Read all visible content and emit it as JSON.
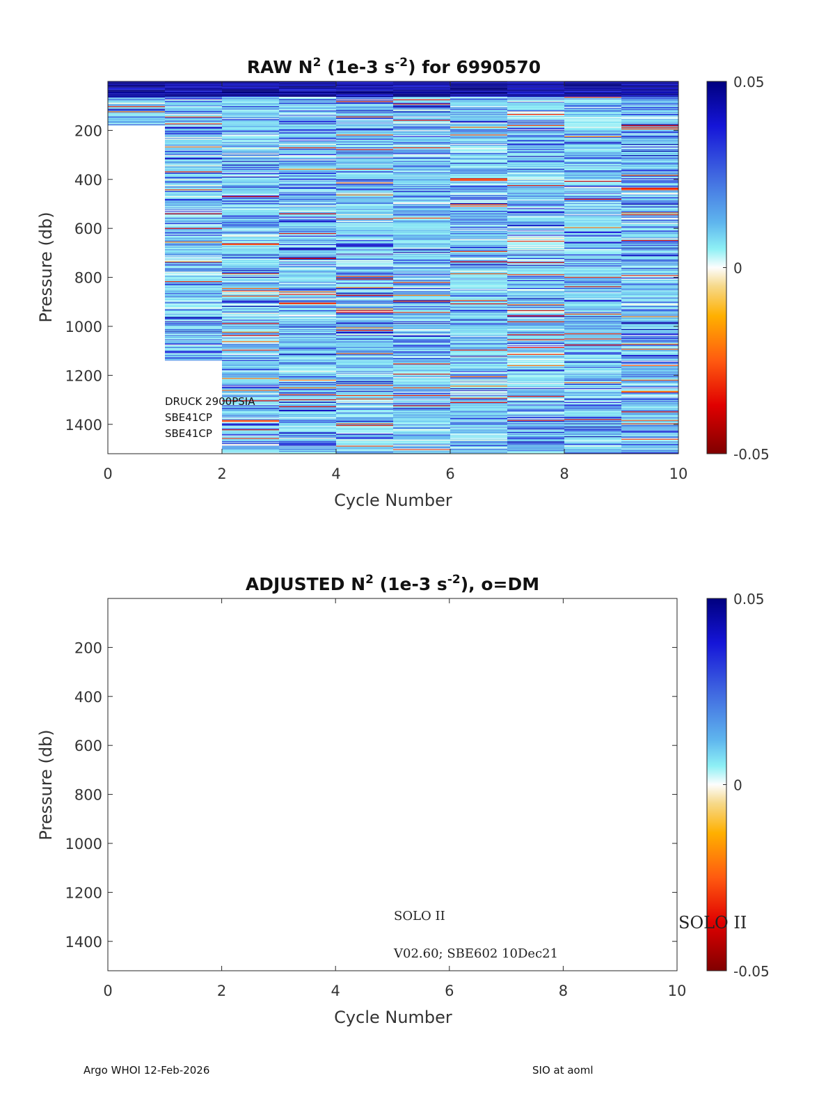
{
  "chart_data": [
    {
      "type": "heatmap",
      "title_main": "RAW N",
      "title_sup": "2",
      "title_mid": " (1e-3 s",
      "title_sup2": "-2",
      "title_end": ") for 6990570",
      "xlabel": "Cycle Number",
      "ylabel": "Pressure (db)",
      "xlim": [
        0,
        10
      ],
      "ylim": [
        1520,
        0
      ],
      "xticks": [
        "0",
        "2",
        "4",
        "6",
        "8",
        "10"
      ],
      "yticks": [
        "200",
        "400",
        "600",
        "800",
        "1000",
        "1200",
        "1400"
      ],
      "colorbar": {
        "min": -0.05,
        "max": 0.05,
        "ticks": [
          "0.05",
          "0",
          "-0.05"
        ]
      },
      "cycles": [
        {
          "cycle": 1,
          "max_pressure": 180
        },
        {
          "cycle": 2,
          "max_pressure": 1140
        },
        {
          "cycle": 3,
          "max_pressure": 1520
        },
        {
          "cycle": 4,
          "max_pressure": 1520
        },
        {
          "cycle": 5,
          "max_pressure": 1520
        },
        {
          "cycle": 6,
          "max_pressure": 1520
        },
        {
          "cycle": 7,
          "max_pressure": 1520
        },
        {
          "cycle": 8,
          "max_pressure": 1520
        },
        {
          "cycle": 9,
          "max_pressure": 1520
        },
        {
          "cycle": 10,
          "max_pressure": 1520
        }
      ],
      "annotations": [
        "DRUCK 2900PSIA",
        "SBE41CP",
        "SBE41CP"
      ]
    },
    {
      "type": "heatmap",
      "title_main": "ADJUSTED N",
      "title_sup": "2",
      "title_mid": " (1e-3 s",
      "title_sup2": "-2",
      "title_end": "), o=DM",
      "xlabel": "Cycle Number",
      "ylabel": "Pressure (db)",
      "xlim": [
        0,
        10
      ],
      "ylim": [
        1520,
        0
      ],
      "xticks": [
        "0",
        "2",
        "4",
        "6",
        "8",
        "10"
      ],
      "yticks": [
        "200",
        "400",
        "600",
        "800",
        "1000",
        "1200",
        "1400"
      ],
      "colorbar": {
        "min": -0.05,
        "max": 0.05,
        "ticks": [
          "0.05",
          "0",
          "-0.05"
        ]
      },
      "cycles": [],
      "annotations": [
        "SOLO II",
        "V02.60; SBE602 10Dec21"
      ],
      "side_label": "SOLO II"
    }
  ],
  "footer": {
    "left": "Argo WHOI 12-Feb-2026",
    "right": "SIO at aoml"
  }
}
